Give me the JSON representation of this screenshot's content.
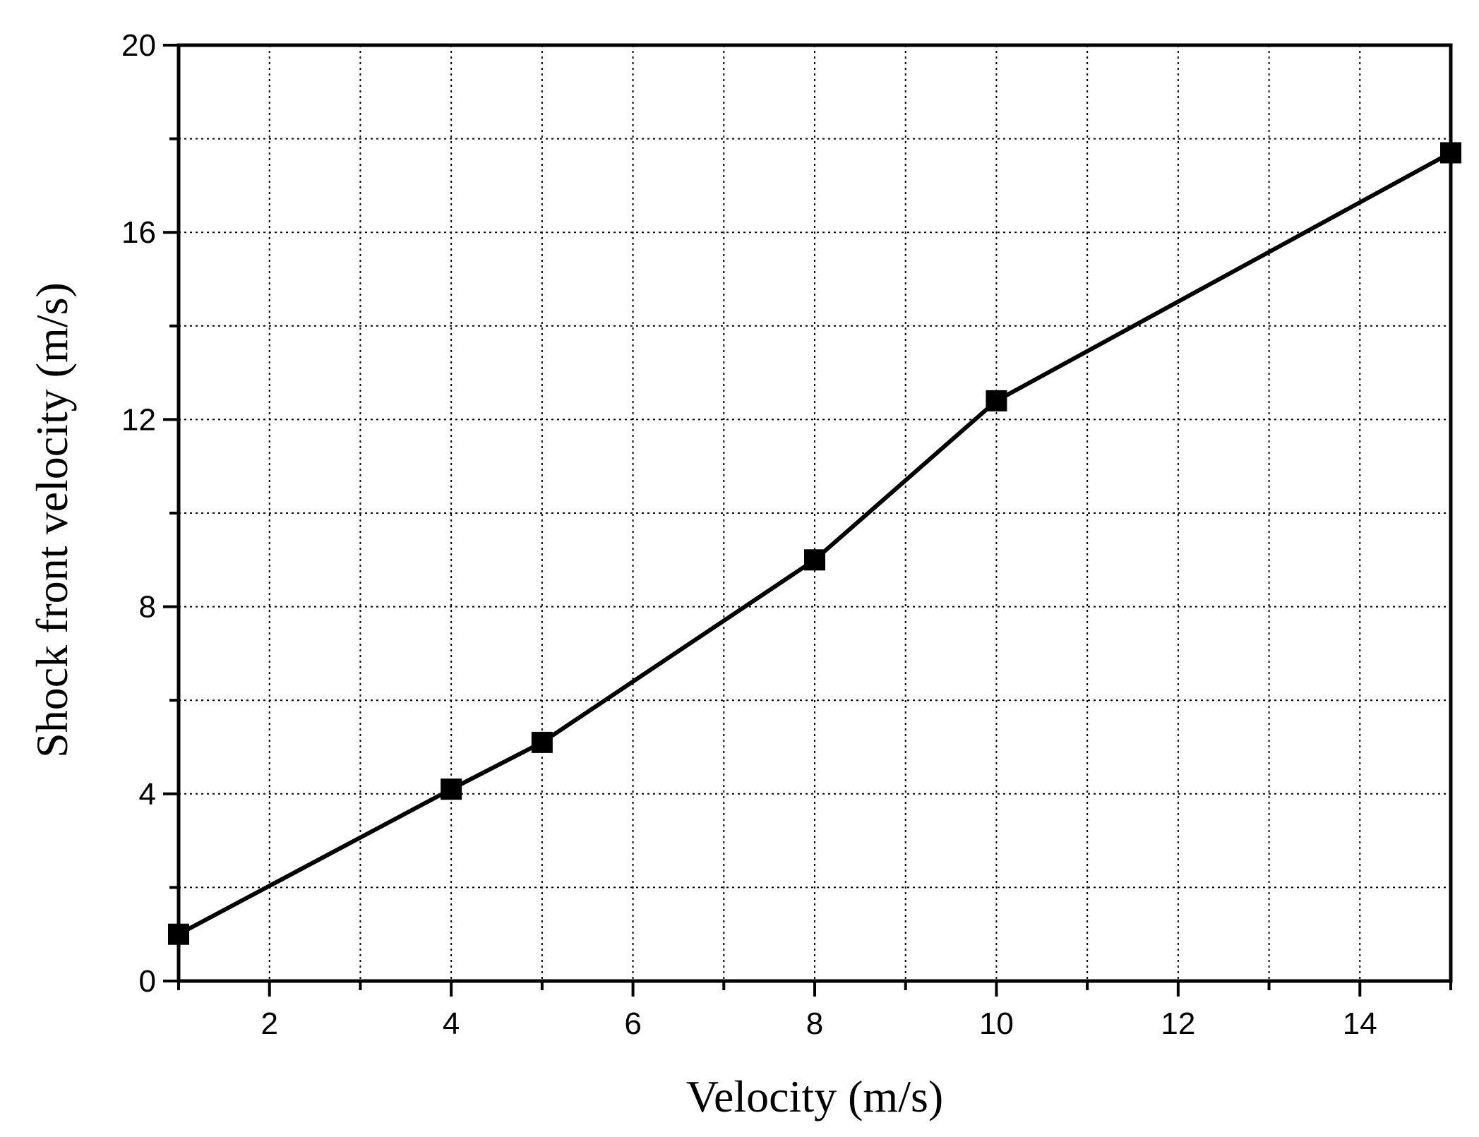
{
  "chart_data": {
    "type": "line",
    "title": "",
    "xlabel": "Velocity (m/s)",
    "ylabel": "Shock front velocity (m/s)",
    "xlim": [
      1,
      15
    ],
    "ylim": [
      0,
      20
    ],
    "x_ticks": [
      2,
      4,
      6,
      8,
      10,
      12,
      14
    ],
    "y_ticks": [
      0,
      4,
      8,
      12,
      16,
      20
    ],
    "x_minor_ticks": [
      1,
      3,
      5,
      7,
      9,
      11,
      13,
      15
    ],
    "y_minor_ticks": [
      2,
      6,
      10,
      14,
      18
    ],
    "grid": true,
    "grid_style": "dotted",
    "marker": "square",
    "color": "#000000",
    "series": [
      {
        "x": [
          1,
          4,
          5,
          8,
          10,
          15
        ],
        "y": [
          1.0,
          4.1,
          5.1,
          9.0,
          12.4,
          17.7
        ]
      }
    ]
  }
}
